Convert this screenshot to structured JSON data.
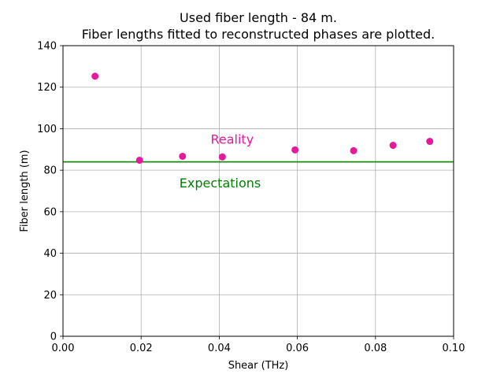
{
  "chart_data": {
    "type": "scatter",
    "title_line1": "Used fiber length - 84 m.",
    "title_line2": "Fiber lengths fitted to reconstructed phases are plotted.",
    "xlabel": "Shear (THz)",
    "ylabel": "Fiber length (m)",
    "xlim": [
      0,
      0.1
    ],
    "ylim": [
      0,
      140
    ],
    "xticks": [
      "0.00",
      "0.02",
      "0.04",
      "0.06",
      "0.08",
      "0.10"
    ],
    "xtick_values": [
      0,
      0.02,
      0.04,
      0.06,
      0.08,
      0.1
    ],
    "yticks": [
      "0",
      "20",
      "40",
      "60",
      "80",
      "100",
      "120",
      "140"
    ],
    "ytick_values": [
      0,
      20,
      40,
      60,
      80,
      100,
      120,
      140
    ],
    "grid": true,
    "points": {
      "x": [
        0.0082,
        0.0196,
        0.0306,
        0.0408,
        0.0594,
        0.0744,
        0.0845,
        0.0939
      ],
      "y": [
        125.3,
        84.8,
        86.7,
        86.4,
        89.8,
        89.4,
        92.0,
        93.9
      ],
      "color": "#e6199c"
    },
    "reference_line": {
      "y": 84,
      "color": "#008000"
    },
    "annotations": [
      {
        "text": "Reality",
        "x": 0.0378,
        "y": 92.8,
        "color": "#e6199c"
      },
      {
        "text": "Expectations",
        "x": 0.0298,
        "y": 71.8,
        "color": "#008000"
      }
    ]
  }
}
